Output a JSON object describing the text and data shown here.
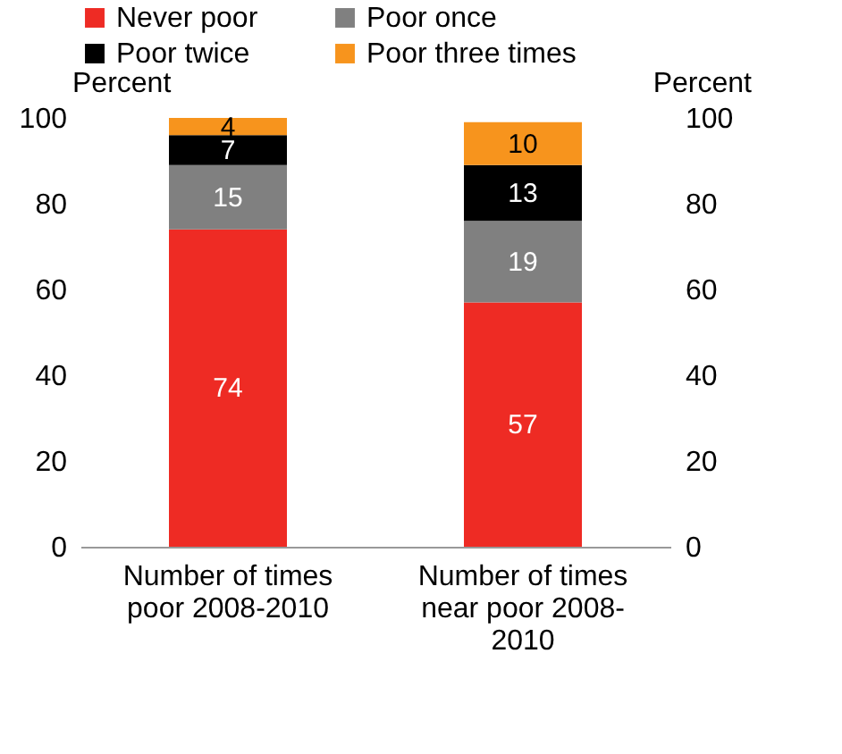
{
  "chart_data": {
    "type": "bar",
    "stacked": true,
    "categories": [
      "Number of times poor 2008-2010",
      "Number of times near poor 2008-2010"
    ],
    "series": [
      {
        "name": "Never poor",
        "color": "#ee2b24",
        "values": [
          74,
          57
        ]
      },
      {
        "name": "Poor once",
        "color": "#808080",
        "values": [
          15,
          19
        ]
      },
      {
        "name": "Poor twice",
        "color": "#000000",
        "values": [
          7,
          13
        ]
      },
      {
        "name": "Poor three times",
        "color": "#f7941d",
        "values": [
          4,
          10
        ]
      }
    ],
    "ylabel": "Percent",
    "y2label": "Percent",
    "ylim": [
      0,
      100
    ],
    "yticks": [
      0,
      20,
      40,
      60,
      80,
      100
    ],
    "y2lim": [
      0,
      100
    ],
    "y2ticks": [
      0,
      20,
      40,
      60,
      80,
      100
    ],
    "data_labels": true,
    "legend": "top left",
    "grid": false
  }
}
